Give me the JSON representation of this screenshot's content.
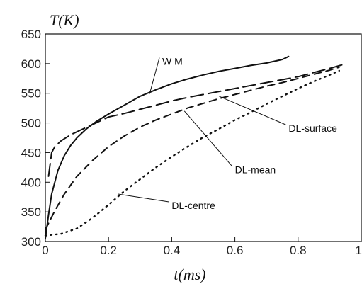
{
  "chart_data": {
    "type": "line",
    "title": "",
    "xlabel": "t(ms)",
    "ylabel": "T(K)",
    "xlim": [
      0,
      1
    ],
    "ylim": [
      300,
      650
    ],
    "x_ticks": [
      "0",
      "0.2",
      "0.4",
      "0.6",
      "0.8",
      "1"
    ],
    "y_ticks": [
      "300",
      "350",
      "400",
      "450",
      "500",
      "550",
      "600",
      "650"
    ],
    "grid": false,
    "legend": "none",
    "series": [
      {
        "name": "W M",
        "style": "solid",
        "x": [
          0.0,
          0.01,
          0.02,
          0.04,
          0.06,
          0.08,
          0.1,
          0.13,
          0.16,
          0.2,
          0.25,
          0.3,
          0.35,
          0.4,
          0.45,
          0.5,
          0.55,
          0.6,
          0.65,
          0.7,
          0.75,
          0.77
        ],
        "y": [
          305,
          345,
          380,
          420,
          445,
          462,
          475,
          490,
          502,
          515,
          530,
          545,
          556,
          566,
          574,
          581,
          587,
          592,
          597,
          601,
          607,
          612
        ]
      },
      {
        "name": "DL-surface",
        "style": "long-dash",
        "x": [
          0.01,
          0.02,
          0.03,
          0.05,
          0.08,
          0.12,
          0.16,
          0.2,
          0.25,
          0.3,
          0.35,
          0.4,
          0.45,
          0.5,
          0.55,
          0.6,
          0.65,
          0.7,
          0.75,
          0.8,
          0.85,
          0.9,
          0.94
        ],
        "y": [
          410,
          450,
          460,
          470,
          480,
          490,
          500,
          510,
          516,
          523,
          530,
          537,
          543,
          548,
          553,
          558,
          563,
          568,
          573,
          578,
          585,
          592,
          598
        ]
      },
      {
        "name": "DL-mean",
        "style": "dash",
        "x": [
          0.0,
          0.03,
          0.06,
          0.1,
          0.15,
          0.2,
          0.25,
          0.3,
          0.35,
          0.4,
          0.45,
          0.5,
          0.55,
          0.6,
          0.65,
          0.7,
          0.75,
          0.8,
          0.85,
          0.9,
          0.93
        ],
        "y": [
          320,
          352,
          380,
          410,
          437,
          460,
          478,
          493,
          505,
          515,
          525,
          533,
          541,
          548,
          555,
          562,
          568,
          575,
          582,
          589,
          594
        ]
      },
      {
        "name": "DL-centre",
        "style": "dotted",
        "x": [
          0.0,
          0.05,
          0.1,
          0.15,
          0.2,
          0.25,
          0.3,
          0.35,
          0.4,
          0.45,
          0.5,
          0.55,
          0.6,
          0.65,
          0.7,
          0.75,
          0.8,
          0.85,
          0.9,
          0.93
        ],
        "y": [
          310,
          313,
          322,
          340,
          362,
          385,
          405,
          425,
          443,
          460,
          476,
          490,
          505,
          518,
          532,
          545,
          558,
          570,
          581,
          588
        ]
      }
    ],
    "annotations": [
      {
        "text": "W M",
        "x": 0.37,
        "y": 598,
        "pointer_to": [
          0.33,
          549
        ]
      },
      {
        "text": "DL-surface",
        "x": 0.77,
        "y": 485,
        "pointer_to": [
          0.55,
          545
        ]
      },
      {
        "text": "DL-mean",
        "x": 0.6,
        "y": 415,
        "pointer_to": [
          0.44,
          520
        ]
      },
      {
        "text": "DL-centre",
        "x": 0.4,
        "y": 355,
        "pointer_to": [
          0.23,
          380
        ]
      }
    ]
  }
}
